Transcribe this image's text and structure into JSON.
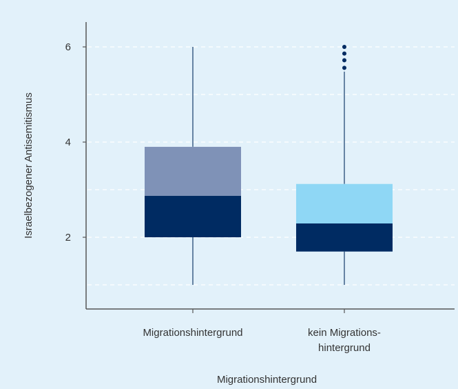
{
  "chart_data": {
    "type": "boxplot",
    "xlabel": "Migrationshintergrund",
    "ylabel": "Israelbezogener Antisemitismus",
    "ylim": [
      0.5,
      6.5
    ],
    "yticks": [
      2,
      4,
      6
    ],
    "grid": "horizontal dashed",
    "categories": [
      {
        "lines": [
          "Migrationshintergrund"
        ]
      },
      {
        "lines": [
          "kein Migrations-",
          "hintergrund"
        ]
      }
    ],
    "boxes": [
      {
        "whisker_low": 1.0,
        "q1": 2.0,
        "median": 2.87,
        "q3": 3.9,
        "whisker_high": 6.0,
        "outliers": [],
        "upper_color": "#7f92b7",
        "lower_color": "#002b62"
      },
      {
        "whisker_low": 1.0,
        "q1": 1.7,
        "median": 2.29,
        "q3": 3.12,
        "whisker_high": 5.48,
        "outliers": [
          5.56,
          5.72,
          5.86,
          6.0
        ],
        "upper_color": "#8fd7f5",
        "lower_color": "#002b62"
      }
    ]
  }
}
